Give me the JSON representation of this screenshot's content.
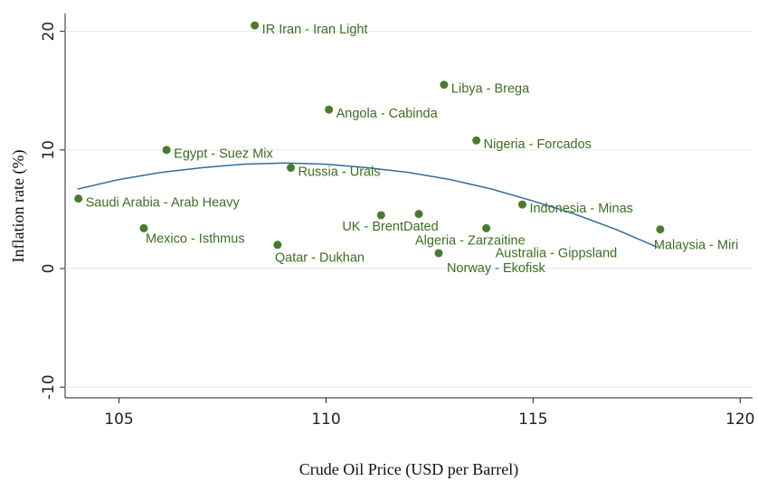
{
  "chart_data": {
    "type": "scatter",
    "x_label": "Crude Oil Price (USD per Barrel)",
    "y_label": "Inflation rate (%)",
    "xlim": [
      103.7,
      120.3
    ],
    "ylim": [
      -10.9,
      21.5
    ],
    "xticks": [
      105,
      110,
      115,
      120
    ],
    "yticks": [
      -10,
      0,
      10,
      20
    ],
    "grid": true,
    "color": "#4a7a2c",
    "labels": [
      "IR Iran - Iran Light",
      "Libya - Brega",
      "Angola - Cabinda",
      "Nigeria - Forcados",
      "Egypt - Suez Mix",
      "Russia - Urals",
      "Saudi Arabia - Arab Heavy",
      "Indonesia - Minas",
      "UK - BrentDated",
      "Algeria - Zarzaitine",
      "Mexico - Isthmus",
      "Australia - Gippsland",
      "Malaysia - Miri",
      "Qatar - Dukhan",
      "Norway - Ekofisk"
    ],
    "x": [
      108.28,
      112.85,
      110.07,
      113.63,
      106.15,
      109.15,
      104.02,
      114.74,
      111.33,
      112.24,
      105.6,
      113.87,
      118.07,
      108.83,
      112.72
    ],
    "values": [
      20.5,
      15.5,
      13.4,
      10.8,
      10.0,
      8.5,
      5.9,
      5.4,
      4.5,
      4.6,
      3.4,
      3.4,
      3.3,
      2.0,
      1.3
    ],
    "fit": {
      "color": "#2f6e9e",
      "x": [
        104,
        105,
        106,
        107,
        108,
        109,
        110,
        111,
        112,
        113,
        114,
        115,
        116,
        117,
        118
      ],
      "values": [
        6.7,
        7.5,
        8.1,
        8.5,
        8.8,
        8.9,
        8.8,
        8.5,
        8.1,
        7.5,
        6.7,
        5.7,
        4.6,
        3.3,
        1.8
      ]
    }
  }
}
